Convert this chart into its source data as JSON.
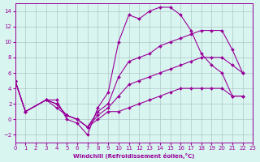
{
  "xlabel": "Windchill (Refroidissement éolien,°C)",
  "background_color": "#d8f5f0",
  "grid_color": "#b0c8c8",
  "line_color": "#990099",
  "xlim": [
    0,
    23
  ],
  "ylim": [
    -3,
    15
  ],
  "xticks": [
    0,
    1,
    2,
    3,
    4,
    5,
    6,
    7,
    8,
    9,
    10,
    11,
    12,
    13,
    14,
    15,
    16,
    17,
    18,
    19,
    20,
    21,
    22,
    23
  ],
  "yticks": [
    -2,
    0,
    2,
    4,
    6,
    8,
    10,
    12,
    14
  ],
  "series": [
    {
      "x": [
        0,
        1,
        3,
        4,
        5,
        6,
        7,
        8,
        9,
        10,
        11,
        12,
        13,
        14,
        15,
        16,
        17,
        18,
        19,
        20,
        21,
        22
      ],
      "y": [
        5,
        1,
        2.5,
        2.5,
        0,
        -0.5,
        -2,
        1.5,
        3.5,
        10,
        13.5,
        13,
        14,
        14.5,
        14.5,
        13.5,
        11.5,
        8.5,
        7,
        6,
        3,
        3
      ],
      "marker": "D",
      "markersize": 2
    },
    {
      "x": [
        0,
        1,
        3,
        4,
        5,
        6,
        7,
        8,
        9,
        10,
        11,
        12,
        13,
        14,
        15,
        16,
        17,
        18,
        19,
        20,
        21,
        22
      ],
      "y": [
        5,
        1,
        2.5,
        2,
        0.5,
        0,
        -1,
        1,
        2,
        5.5,
        7.5,
        8,
        8.5,
        9.5,
        10,
        10.5,
        11,
        11.5,
        11.5,
        11.5,
        9,
        6
      ],
      "marker": "D",
      "markersize": 2
    },
    {
      "x": [
        0,
        1,
        3,
        4,
        5,
        6,
        7,
        8,
        9,
        10,
        11,
        12,
        13,
        14,
        15,
        16,
        17,
        18,
        19,
        20,
        21,
        22
      ],
      "y": [
        5,
        1,
        2.5,
        2,
        0.5,
        0,
        -1,
        0.5,
        1.5,
        3,
        4.5,
        5,
        5.5,
        6,
        6.5,
        7,
        7.5,
        8,
        8,
        8,
        7,
        6
      ],
      "marker": "D",
      "markersize": 2
    },
    {
      "x": [
        0,
        1,
        3,
        4,
        5,
        6,
        7,
        8,
        9,
        10,
        11,
        12,
        13,
        14,
        15,
        16,
        17,
        18,
        19,
        20,
        21,
        22
      ],
      "y": [
        5,
        1,
        2.5,
        1.5,
        0.5,
        0,
        -1,
        0,
        1,
        1,
        1.5,
        2,
        2.5,
        3,
        3.5,
        4,
        4,
        4,
        4,
        4,
        3,
        3
      ],
      "marker": "D",
      "markersize": 2
    }
  ]
}
